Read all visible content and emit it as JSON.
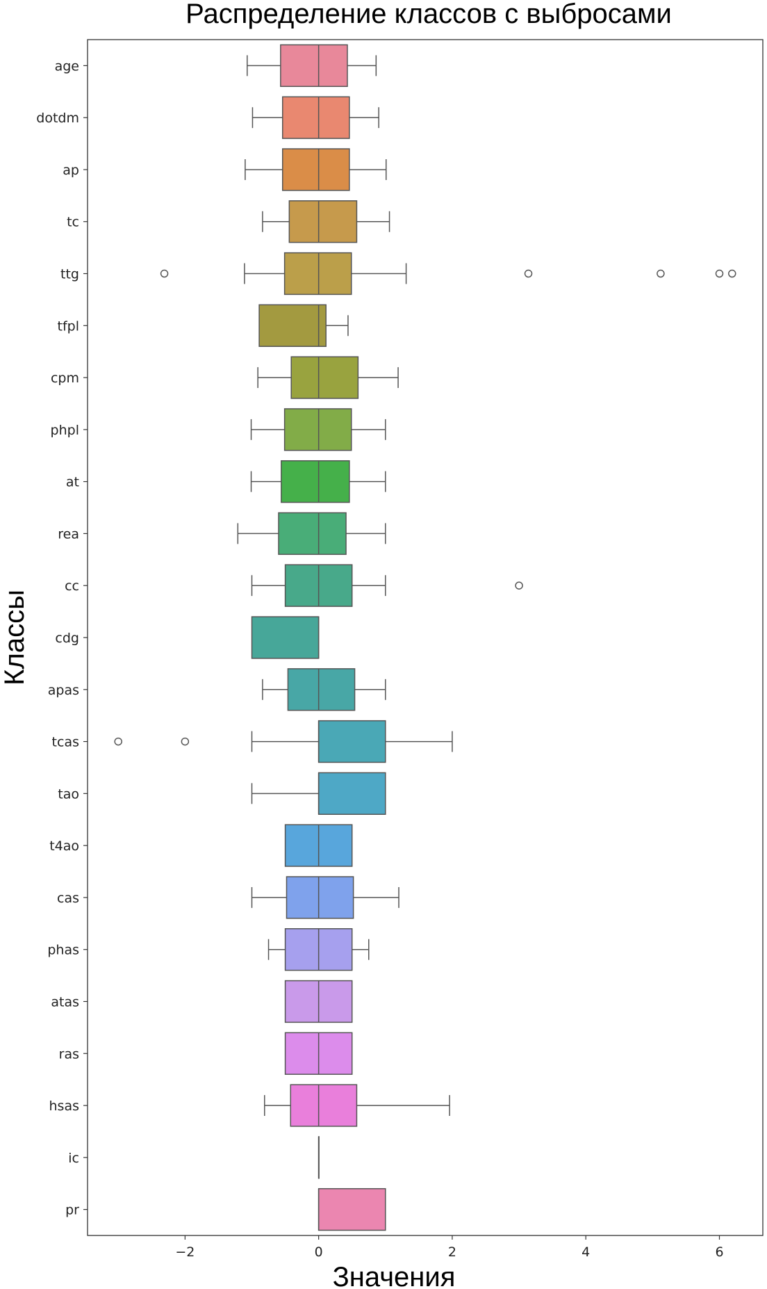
{
  "chart_data": {
    "type": "boxplot",
    "orientation": "horizontal",
    "title": "Распределение классов с выбросами",
    "xlabel": "Значения",
    "ylabel": "Классы",
    "xlim": [
      -3.46,
      6.65
    ],
    "xticks": [
      -2,
      0,
      2,
      4,
      6
    ],
    "xtick_labels": [
      "−2",
      "0",
      "2",
      "4",
      "6"
    ],
    "grid": false,
    "series": [
      {
        "name": "age",
        "whislo": -1.07,
        "q1": -0.57,
        "med": 0,
        "q3": 0.43,
        "whishi": 0.86,
        "fliers": [],
        "color": "#e8889a"
      },
      {
        "name": "dotdm",
        "whislo": -0.99,
        "q1": -0.54,
        "med": 0,
        "q3": 0.46,
        "whishi": 0.9,
        "fliers": [],
        "color": "#e98870"
      },
      {
        "name": "ap",
        "whislo": -1.1,
        "q1": -0.54,
        "med": 0,
        "q3": 0.46,
        "whishi": 1.01,
        "fliers": [],
        "color": "#da8d48"
      },
      {
        "name": "tc",
        "whislo": -0.84,
        "q1": -0.44,
        "med": 0,
        "q3": 0.57,
        "whishi": 1.06,
        "fliers": [],
        "color": "#c69a4c"
      },
      {
        "name": "ttg",
        "whislo": -1.11,
        "q1": -0.51,
        "med": 0,
        "q3": 0.49,
        "whishi": 1.31,
        "fliers": [
          -2.31,
          3.14,
          5.12,
          6.0,
          6.19
        ],
        "color": "#bb9f4a"
      },
      {
        "name": "tfpl",
        "whislo": -0.89,
        "q1": -0.89,
        "med": 0,
        "q3": 0.11,
        "whishi": 0.44,
        "fliers": [],
        "color": "#a39a40"
      },
      {
        "name": "cpm",
        "whislo": -0.91,
        "q1": -0.41,
        "med": 0,
        "q3": 0.59,
        "whishi": 1.19,
        "fliers": [],
        "color": "#99a33f"
      },
      {
        "name": "phpl",
        "whislo": -1.01,
        "q1": -0.51,
        "med": 0,
        "q3": 0.49,
        "whishi": 1.0,
        "fliers": [],
        "color": "#82ac48"
      },
      {
        "name": "at",
        "whislo": -1.01,
        "q1": -0.56,
        "med": 0,
        "q3": 0.46,
        "whishi": 1.0,
        "fliers": [],
        "color": "#45b04a"
      },
      {
        "name": "rea",
        "whislo": -1.21,
        "q1": -0.6,
        "med": 0,
        "q3": 0.41,
        "whishi": 1.0,
        "fliers": [],
        "color": "#49ad78"
      },
      {
        "name": "cc",
        "whislo": -1.0,
        "q1": -0.5,
        "med": 0,
        "q3": 0.5,
        "whishi": 1.0,
        "fliers": [
          3.0
        ],
        "color": "#48a98a"
      },
      {
        "name": "cdg",
        "whislo": -1.0,
        "q1": -1.0,
        "med": 0,
        "q3": 0,
        "whishi": 0,
        "fliers": [],
        "color": "#47a799"
      },
      {
        "name": "apas",
        "whislo": -0.84,
        "q1": -0.46,
        "med": 0,
        "q3": 0.54,
        "whishi": 1.0,
        "fliers": [],
        "color": "#48a7a6"
      },
      {
        "name": "tcas",
        "whislo": -1.0,
        "q1": 0,
        "med": 0,
        "q3": 1.0,
        "whishi": 2.0,
        "fliers": [
          -3.0,
          -2.0
        ],
        "color": "#4aa8b6"
      },
      {
        "name": "tao",
        "whislo": -1.0,
        "q1": 0,
        "med": 0,
        "q3": 1.0,
        "whishi": 1.0,
        "fliers": [],
        "color": "#4ea8c6"
      },
      {
        "name": "t4ao",
        "whislo": -0.5,
        "q1": -0.5,
        "med": 0,
        "q3": 0.5,
        "whishi": 0.5,
        "fliers": [],
        "color": "#58a6dc"
      },
      {
        "name": "cas",
        "whislo": -1.0,
        "q1": -0.48,
        "med": 0,
        "q3": 0.52,
        "whishi": 1.2,
        "fliers": [],
        "color": "#7fa2ec"
      },
      {
        "name": "phas",
        "whislo": -0.75,
        "q1": -0.5,
        "med": 0,
        "q3": 0.5,
        "whishi": 0.75,
        "fliers": [],
        "color": "#a6a0ee"
      },
      {
        "name": "atas",
        "whislo": -0.5,
        "q1": -0.5,
        "med": 0,
        "q3": 0.5,
        "whishi": 0.5,
        "fliers": [],
        "color": "#c99aea"
      },
      {
        "name": "ras",
        "whislo": -0.5,
        "q1": -0.5,
        "med": 0,
        "q3": 0.5,
        "whishi": 0.5,
        "fliers": [],
        "color": "#dc8ceb"
      },
      {
        "name": "hsas",
        "whislo": -0.81,
        "q1": -0.42,
        "med": 0,
        "q3": 0.57,
        "whishi": 1.96,
        "fliers": [],
        "color": "#e97fdb"
      },
      {
        "name": "ic",
        "whislo": 0,
        "q1": 0,
        "med": 0,
        "q3": 0,
        "whishi": 0,
        "fliers": [],
        "color": "#ea84c6"
      },
      {
        "name": "pr",
        "whislo": 0,
        "q1": 0,
        "med": 0,
        "q3": 1.0,
        "whishi": 1.0,
        "fliers": [],
        "color": "#eb86b0"
      }
    ]
  }
}
